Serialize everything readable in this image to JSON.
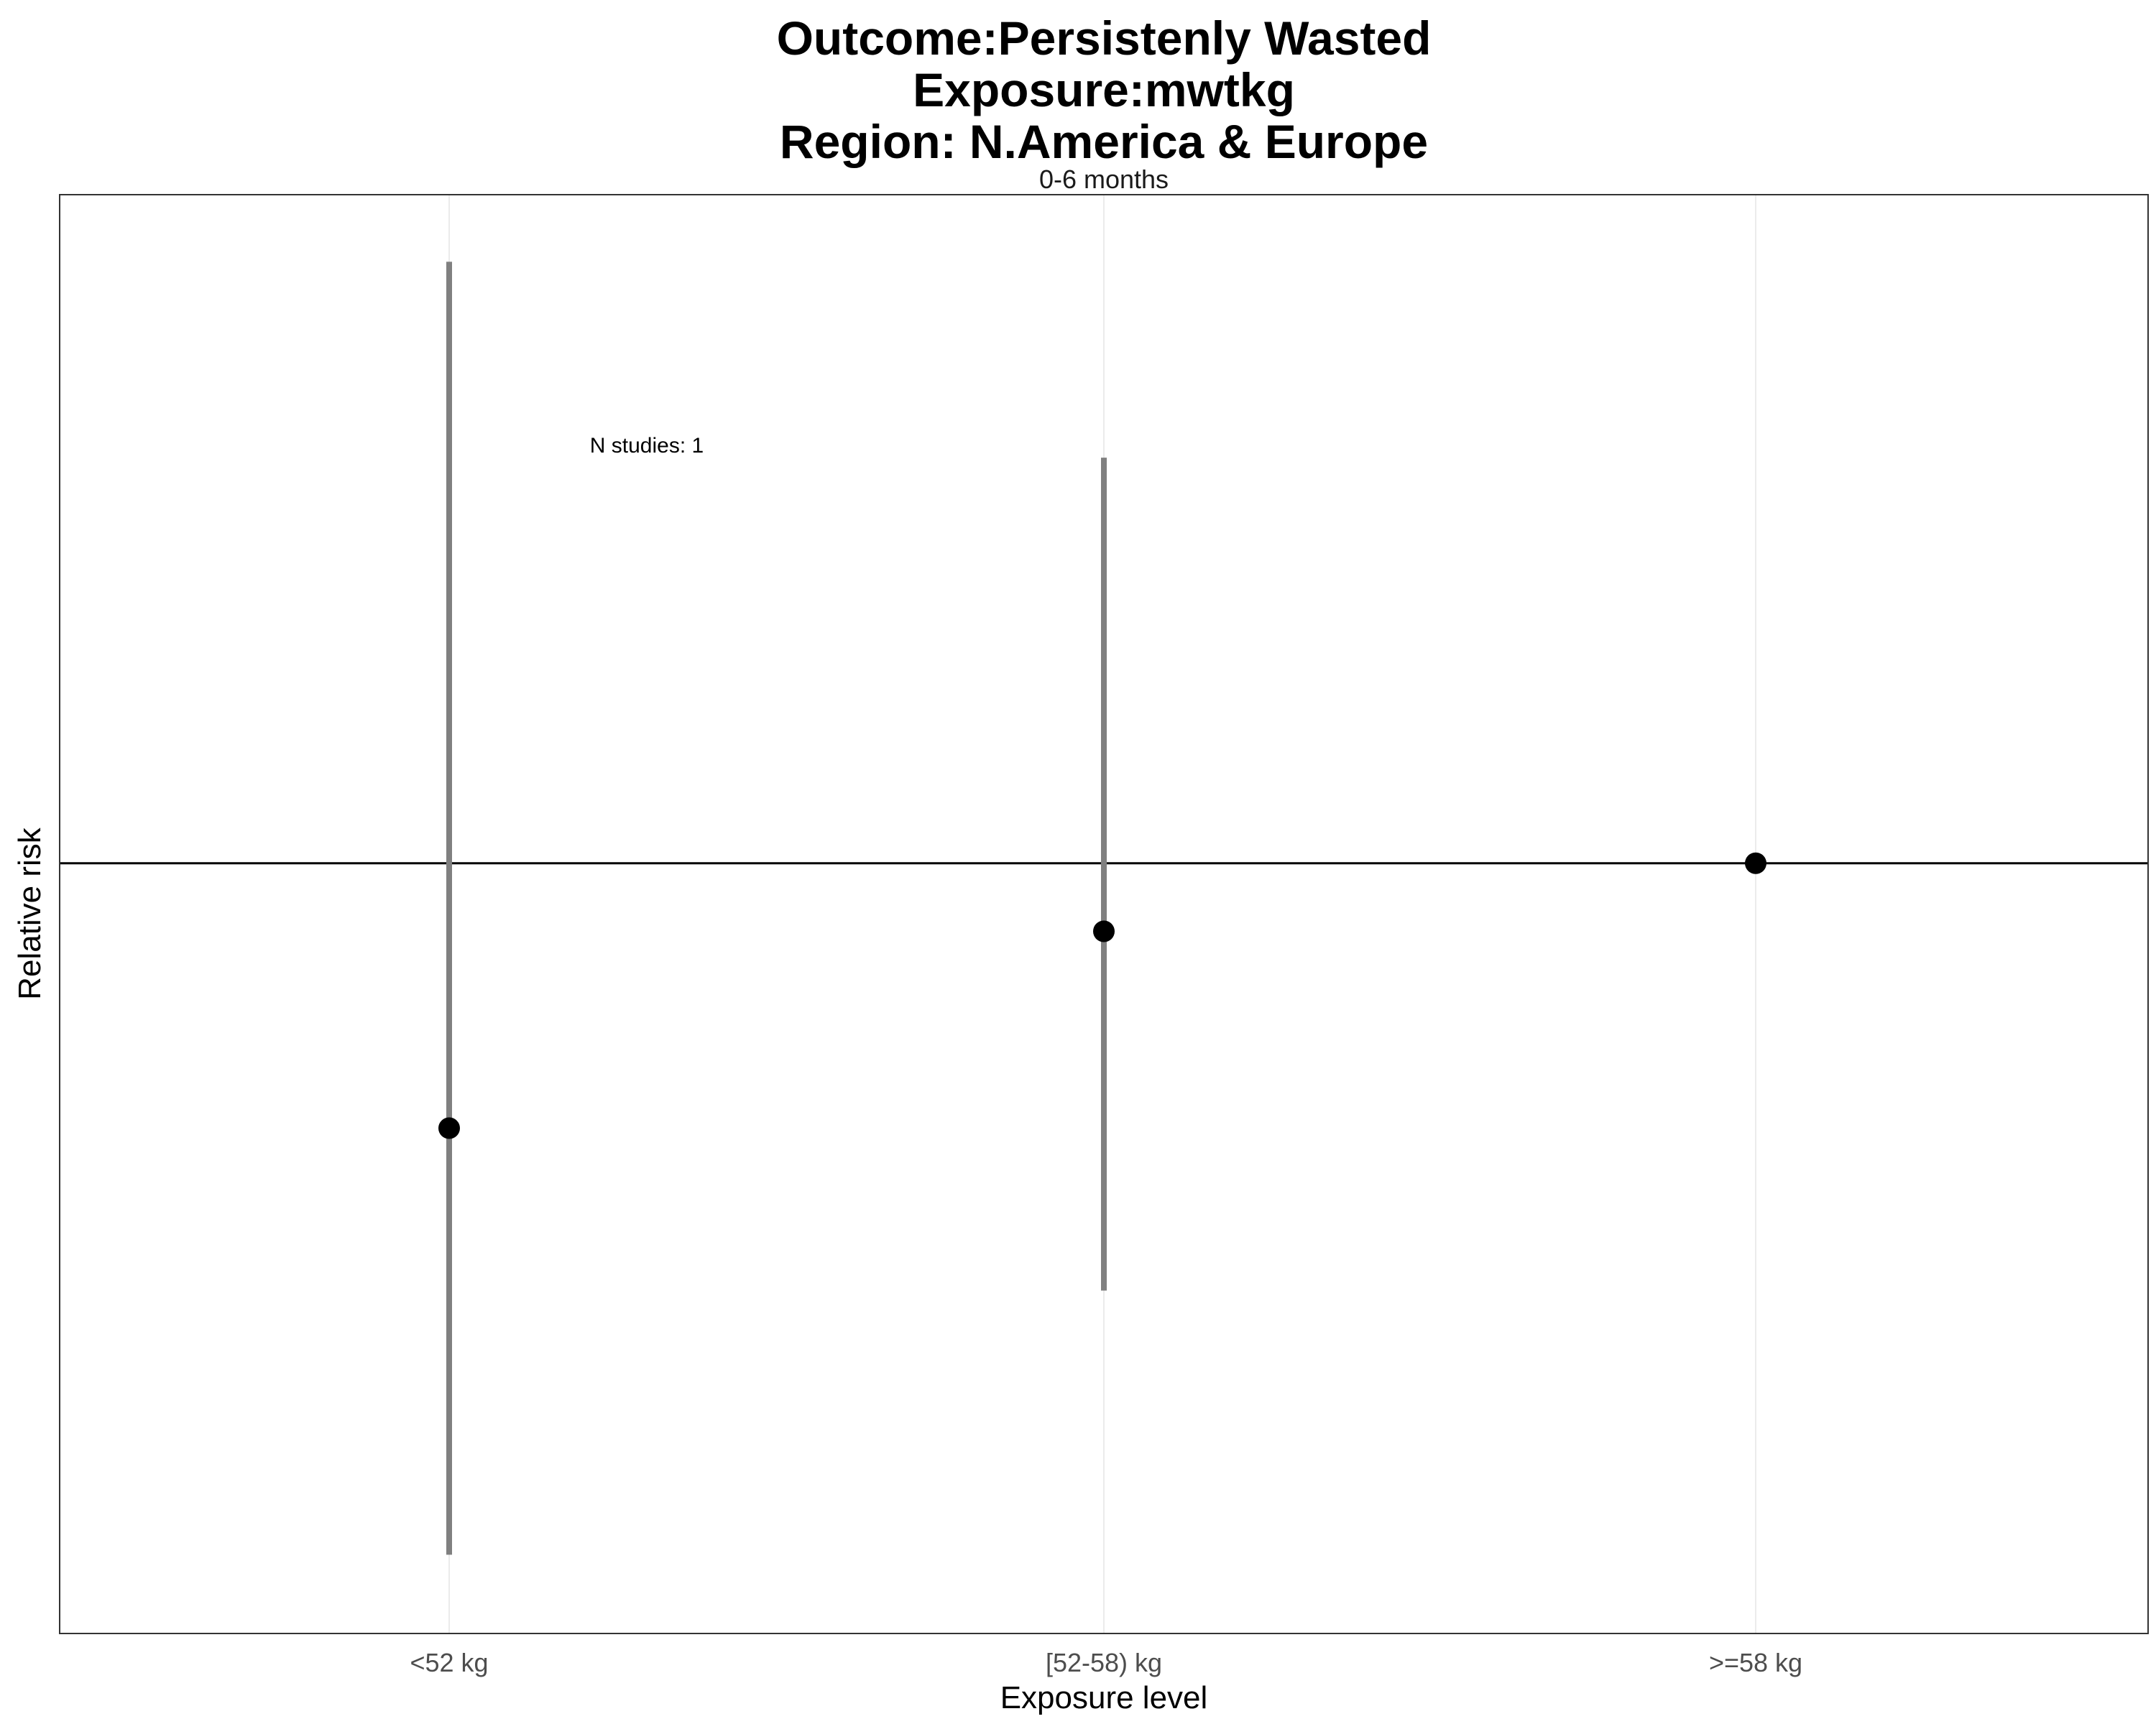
{
  "chart_data": {
    "type": "scatter",
    "title_lines": [
      "Outcome:Persistenly Wasted",
      "Exposure:mwtkg",
      "Region: N.America & Europe"
    ],
    "facet_label": "0-6 months",
    "xlabel": "Exposure level",
    "ylabel": "Relative risk",
    "categories": [
      "<52 kg",
      "[52-58) kg",
      ">=58 kg"
    ],
    "series": [
      {
        "estimate": [
          0.38,
          0.78,
          1.0
        ],
        "ci_lower": [
          0.08,
          0.21,
          null
        ],
        "ci_upper": [
          9.0,
          4.4,
          null
        ]
      }
    ],
    "reference_line": 1,
    "y_scale": "log",
    "ylim": [
      0.06,
      11.5
    ],
    "y_tick_labels_shown": false,
    "annotation": "N studies: 1",
    "grid": "vertical major gridlines only",
    "colors": {
      "point": "#000000",
      "errorbar": "#808080",
      "reference": "#000000",
      "grid": "#ebebeb"
    }
  }
}
